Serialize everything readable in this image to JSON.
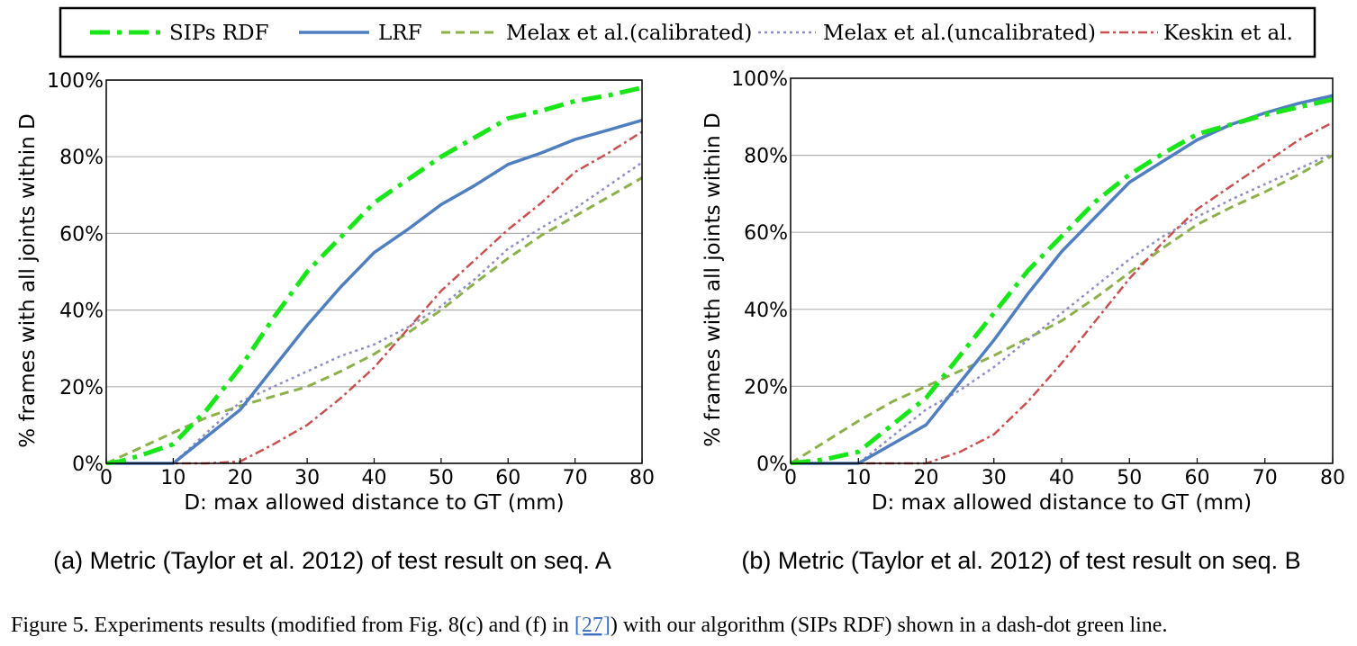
{
  "legend": {
    "entries": [
      {
        "label": "SIPs RDF",
        "color": "#19e619",
        "dash": "22,8,5,8",
        "width": 5
      },
      {
        "label": "LRF",
        "color": "#4f7fbf",
        "dash": "",
        "width": 3.5
      },
      {
        "label": "Melax et al.(calibrated)",
        "color": "#8cb04a",
        "dash": "10,6",
        "width": 3
      },
      {
        "label": "Melax et al.(uncalibrated)",
        "color": "#8e8ec6",
        "dash": "3,4",
        "width": 2.5
      },
      {
        "label": "Keskin et al.",
        "color": "#c85050",
        "dash": "10,4,3,4",
        "width": 2.5
      }
    ]
  },
  "chart_data": [
    {
      "type": "line",
      "title": "",
      "xlabel": "D: max allowed distance to GT (mm)",
      "ylabel": "% frames with all joints within D",
      "xlim": [
        0,
        80
      ],
      "ylim": [
        0,
        100
      ],
      "xticks": [
        "0",
        "10",
        "20",
        "30",
        "40",
        "50",
        "60",
        "70",
        "80"
      ],
      "yticks": [
        "0%",
        "20%",
        "40%",
        "60%",
        "80%",
        "100%"
      ],
      "grid": "horizontal",
      "series": [
        {
          "name": "SIPs RDF",
          "x": [
            0,
            2,
            5,
            10,
            15,
            20,
            25,
            30,
            35,
            40,
            45,
            50,
            55,
            60,
            65,
            70,
            75,
            80
          ],
          "y": [
            0,
            0.5,
            2,
            5,
            14,
            25,
            38,
            50,
            59,
            68,
            74,
            80,
            85,
            90,
            92,
            94.5,
            96,
            98
          ]
        },
        {
          "name": "LRF",
          "x": [
            0,
            10,
            15,
            20,
            25,
            30,
            35,
            40,
            45,
            50,
            55,
            60,
            65,
            70,
            75,
            80
          ],
          "y": [
            0,
            0,
            7,
            14,
            25,
            36,
            46,
            55,
            61,
            67.5,
            72.5,
            78,
            81,
            84.5,
            87,
            89.5
          ]
        },
        {
          "name": "Melax et al.(calibrated)",
          "x": [
            0,
            5,
            10,
            15,
            20,
            25,
            30,
            35,
            40,
            45,
            50,
            55,
            60,
            65,
            70,
            75,
            80
          ],
          "y": [
            0,
            4,
            8,
            12,
            15,
            17.5,
            20,
            24,
            28.5,
            34,
            40,
            47,
            53.5,
            59.5,
            64.5,
            69.5,
            74.5
          ]
        },
        {
          "name": "Melax et al.(uncalibrated)",
          "x": [
            0,
            10,
            15,
            20,
            25,
            30,
            35,
            40,
            45,
            50,
            55,
            60,
            65,
            70,
            75,
            80
          ],
          "y": [
            0,
            0,
            8,
            16,
            20,
            24,
            28,
            31,
            35.5,
            41,
            48,
            56,
            61.5,
            66.5,
            72.5,
            78.5
          ]
        },
        {
          "name": "Keskin et al.",
          "x": [
            0,
            10,
            15,
            20,
            25,
            30,
            35,
            40,
            45,
            50,
            55,
            60,
            65,
            70,
            75,
            80
          ],
          "y": [
            0,
            0,
            0,
            0.5,
            5,
            10,
            17,
            25,
            35,
            45,
            53,
            61,
            68,
            76,
            81,
            86.5
          ]
        }
      ]
    },
    {
      "type": "line",
      "title": "",
      "xlabel": "D: max allowed distance to GT (mm)",
      "ylabel": "% frames with all joints within D",
      "xlim": [
        0,
        80
      ],
      "ylim": [
        0,
        100
      ],
      "xticks": [
        "0",
        "10",
        "20",
        "30",
        "40",
        "50",
        "60",
        "70",
        "80"
      ],
      "yticks": [
        "0%",
        "20%",
        "40%",
        "60%",
        "80%",
        "100%"
      ],
      "grid": "horizontal",
      "series": [
        {
          "name": "SIPs RDF",
          "x": [
            0,
            5,
            10,
            15,
            20,
            25,
            30,
            35,
            40,
            45,
            50,
            55,
            60,
            65,
            70,
            75,
            80
          ],
          "y": [
            0,
            1,
            3,
            10,
            17,
            28,
            39,
            50,
            59,
            68,
            75,
            80.5,
            85.5,
            88,
            90.5,
            92.5,
            94.5
          ]
        },
        {
          "name": "LRF",
          "x": [
            0,
            10,
            15,
            20,
            25,
            30,
            35,
            40,
            45,
            50,
            55,
            60,
            65,
            70,
            75,
            80
          ],
          "y": [
            0,
            0,
            5,
            10,
            21,
            32,
            44,
            55,
            64,
            73,
            78.5,
            84,
            88,
            91,
            93.5,
            95.5
          ]
        },
        {
          "name": "Melax et al.(calibrated)",
          "x": [
            0,
            5,
            10,
            15,
            20,
            25,
            30,
            35,
            40,
            45,
            50,
            55,
            60,
            65,
            70,
            75,
            80
          ],
          "y": [
            0,
            5.5,
            11,
            16,
            20,
            24,
            28,
            32.5,
            37,
            43,
            49.5,
            56,
            62,
            66.5,
            70.5,
            75,
            80
          ]
        },
        {
          "name": "Melax et al.(uncalibrated)",
          "x": [
            0,
            10,
            15,
            20,
            25,
            30,
            35,
            40,
            45,
            50,
            55,
            60,
            65,
            70,
            75,
            80
          ],
          "y": [
            0,
            0,
            7,
            14,
            19,
            25,
            32,
            39,
            46,
            53,
            59,
            64,
            68.5,
            72.5,
            76.5,
            80.5
          ]
        },
        {
          "name": "Keskin et al.",
          "x": [
            0,
            10,
            15,
            20,
            25,
            30,
            35,
            40,
            45,
            50,
            55,
            60,
            65,
            70,
            75,
            80
          ],
          "y": [
            0,
            0,
            0,
            0,
            3,
            7.5,
            16,
            26,
            37,
            48,
            57.5,
            66,
            72,
            78,
            84,
            88.5
          ]
        }
      ]
    }
  ],
  "subcaptions": [
    "(a) Metric (Taylor et al. 2012) of test result on seq. A",
    "(b) Metric (Taylor et al. 2012) of test result on seq. B"
  ],
  "caption": {
    "before": "Figure 5. Experiments results (modified from Fig. 8(c) and (f) in ",
    "ref": "[27]",
    "after": ") with our algorithm (SIPs RDF) shown in a dash-dot green line."
  }
}
